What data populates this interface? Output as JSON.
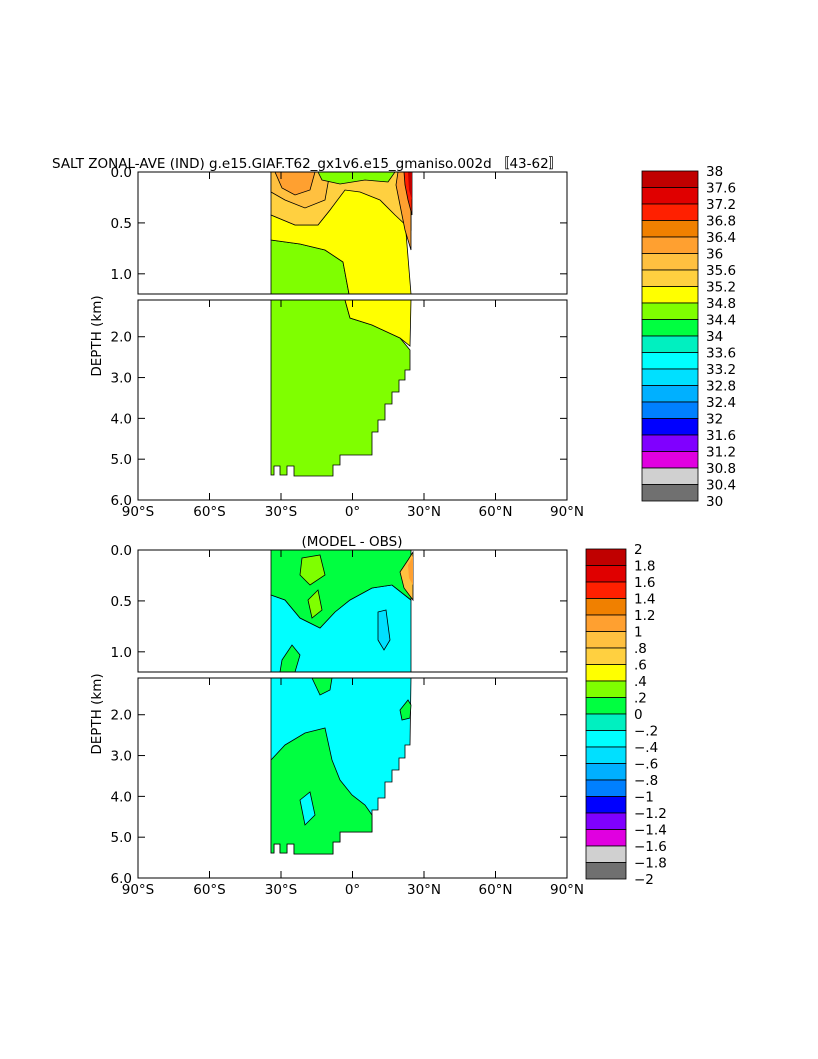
{
  "figure": {
    "title": "SALT ZONAL-AVE (IND) g.e15.GIAF.T62_gx1v6.e15_gmaniso.002d 〚43-62〛"
  },
  "chart_data": [
    {
      "type": "heatmap",
      "id": "model",
      "title": "SALT ZONAL-AVE (IND) g.e15.GIAF.T62_gx1v6.e15_gmaniso.002d 〚43-62〛",
      "subtitle": "",
      "ylabel": "DEPTH (km)",
      "x_tick_labels": [
        "90°S",
        "60°S",
        "30°S",
        "0°",
        "30°N",
        "60°N",
        "90°N"
      ],
      "x_ticks": [
        -90,
        -60,
        -30,
        0,
        30,
        60,
        90
      ],
      "xlim": [
        -90,
        90
      ],
      "upper_y_tick_labels": [
        "0.0",
        "0.5",
        "1.0"
      ],
      "upper_y_ticks": [
        0,
        0.5,
        1.0
      ],
      "upper_ylim": [
        0,
        1.1
      ],
      "lower_y_tick_labels": [
        "2.0",
        "3.0",
        "4.0",
        "5.0",
        "6.0"
      ],
      "lower_y_ticks": [
        2,
        3,
        4,
        5,
        6
      ],
      "lower_ylim": [
        1.1,
        6.0
      ],
      "colorbar_labels": [
        "38",
        "37.6",
        "37.2",
        "36.8",
        "36.4",
        "36",
        "35.6",
        "35.2",
        "34.8",
        "34.4",
        "34",
        "33.6",
        "33.2",
        "32.8",
        "32.4",
        "32",
        "31.6",
        "31.2",
        "30.8",
        "30.4",
        "30"
      ],
      "colorbar_colors": [
        "#c00000",
        "#e00000",
        "#ff2000",
        "#f08000",
        "#ffa030",
        "#ffc040",
        "#ffd040",
        "#ffff00",
        "#7fff00",
        "#00ff40",
        "#00f0c0",
        "#00ffff",
        "#00e0ff",
        "#00b0ff",
        "#0080ff",
        "#0000ff",
        "#8000ff",
        "#e000e0",
        "#d0d0d0",
        "#707070"
      ],
      "regions": [
        {
          "name": "salinity 34.4-34.8",
          "color": "#7fff00"
        },
        {
          "name": "salinity 34.8-35.2",
          "color": "#ffff00"
        },
        {
          "name": "salinity 35.2-35.6",
          "color": "#ffd040"
        },
        {
          "name": "salinity 35.6-36.0",
          "color": "#ffc040"
        },
        {
          "name": "salinity 36.0-36.4",
          "color": "#ffa030"
        },
        {
          "name": "salinity >36.8",
          "color": "#ff2000"
        }
      ]
    },
    {
      "type": "heatmap",
      "id": "difference",
      "title": "(MODEL - OBS)",
      "subtitle": "",
      "ylabel": "DEPTH (km)",
      "x_tick_labels": [
        "90°S",
        "60°S",
        "30°S",
        "0°",
        "30°N",
        "60°N",
        "90°N"
      ],
      "x_ticks": [
        -90,
        -60,
        -30,
        0,
        30,
        60,
        90
      ],
      "xlim": [
        -90,
        90
      ],
      "upper_y_tick_labels": [
        "0.0",
        "0.5",
        "1.0"
      ],
      "upper_y_ticks": [
        0,
        0.5,
        1.0
      ],
      "upper_ylim": [
        0,
        1.1
      ],
      "lower_y_tick_labels": [
        "2.0",
        "3.0",
        "4.0",
        "5.0",
        "6.0"
      ],
      "lower_y_ticks": [
        2,
        3,
        4,
        5,
        6
      ],
      "lower_ylim": [
        1.1,
        6.0
      ],
      "colorbar_labels": [
        "2",
        "1.8",
        "1.6",
        "1.4",
        "1.2",
        "1",
        ".8",
        ".6",
        ".4",
        ".2",
        "0",
        "−.2",
        "−.4",
        "−.6",
        "−.8",
        "−1",
        "−1.2",
        "−1.4",
        "−1.6",
        "−1.8",
        "−2"
      ],
      "colorbar_colors": [
        "#c00000",
        "#e00000",
        "#ff2000",
        "#f08000",
        "#ffa030",
        "#ffc040",
        "#ffd040",
        "#ffff00",
        "#7fff00",
        "#00ff40",
        "#00f0c0",
        "#00ffff",
        "#00e0ff",
        "#00b0ff",
        "#0080ff",
        "#0000ff",
        "#8000ff",
        "#e000e0",
        "#d0d0d0",
        "#707070"
      ],
      "regions": [
        {
          "name": "difference -0.2-0",
          "color": "#00ffff"
        },
        {
          "name": "difference 0-0.2",
          "color": "#00ff40"
        },
        {
          "name": "difference 0.2-0.4",
          "color": "#7fff00"
        },
        {
          "name": "difference >0.4",
          "color": "#ffc040"
        }
      ]
    }
  ]
}
